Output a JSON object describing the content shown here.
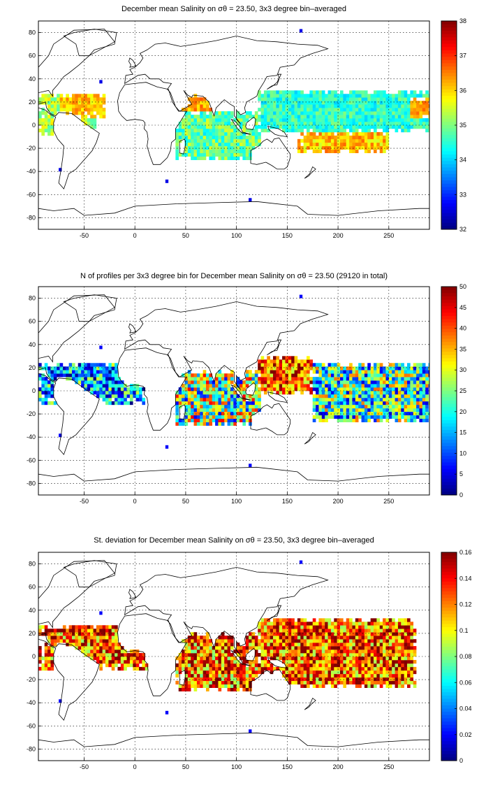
{
  "figure": {
    "grid": true,
    "x_ticks": [
      -50,
      0,
      50,
      100,
      150,
      200,
      250
    ],
    "y_ticks": [
      80,
      60,
      40,
      20,
      0,
      -20,
      -40,
      -60,
      -80
    ],
    "xlim": [
      -95,
      290
    ],
    "ylim": [
      -90,
      90
    ],
    "colormap": "jet"
  },
  "panels": [
    {
      "title": "December mean Salinity on σθ = 23.50, 3x3 degree bin–averaged",
      "colorbar": {
        "min": 32,
        "max": 38,
        "ticks": [
          "38",
          "37",
          "36",
          "35",
          "34",
          "33",
          "32"
        ]
      }
    },
    {
      "title": "N of profiles per 3x3 degree bin for December mean Salinity on σθ = 23.50 (29120 in total)",
      "colorbar": {
        "min": 0,
        "max": 50,
        "ticks": [
          "50",
          "45",
          "40",
          "35",
          "30",
          "25",
          "20",
          "15",
          "10",
          "5",
          "0"
        ]
      }
    },
    {
      "title": "St. deviation for December mean Salinity on σθ = 23.50, 3x3 degree bin–averaged",
      "colorbar": {
        "min": 0,
        "max": 0.16,
        "ticks": [
          "0.16",
          "0.14",
          "0.12",
          "0.1",
          "0.08",
          "0.06",
          "0.04",
          "0.02",
          "0"
        ]
      }
    }
  ],
  "chart_data": [
    {
      "type": "heatmap",
      "title": "December mean Salinity on σθ = 23.50, 3x3 degree bin–averaged",
      "xlim": [
        -95,
        290
      ],
      "ylim": [
        -90,
        90
      ],
      "value_range": [
        32,
        38
      ],
      "regions": [
        {
          "lon": [
            -95,
            -45
          ],
          "lat": [
            -10,
            20
          ],
          "value": 35.6
        },
        {
          "lon": [
            -75,
            -30
          ],
          "lat": [
            5,
            25
          ],
          "value": 36.0
        },
        {
          "lon": [
            45,
            75
          ],
          "lat": [
            10,
            25
          ],
          "value": 36.2
        },
        {
          "lon": [
            40,
            120
          ],
          "lat": [
            -30,
            20
          ],
          "value": 34.8
        },
        {
          "lon": [
            120,
            290
          ],
          "lat": [
            -10,
            30
          ],
          "value": 34.7
        },
        {
          "lon": [
            160,
            250
          ],
          "lat": [
            -25,
            -5
          ],
          "value": 36.0
        },
        {
          "lon": [
            270,
            290
          ],
          "lat": [
            5,
            25
          ],
          "value": 36.2
        }
      ]
    },
    {
      "type": "heatmap",
      "title": "N of profiles per 3x3 degree bin for December mean Salinity on σθ = 23.50 (29120 in total)",
      "xlim": [
        -95,
        290
      ],
      "ylim": [
        -90,
        90
      ],
      "value_range": [
        0,
        50
      ],
      "total": 29120,
      "regions": [
        {
          "lon": [
            -95,
            -45
          ],
          "lat": [
            -10,
            20
          ],
          "value": 12
        },
        {
          "lon": [
            40,
            120
          ],
          "lat": [
            -30,
            20
          ],
          "value": 25
        },
        {
          "lon": [
            120,
            175
          ],
          "lat": [
            0,
            30
          ],
          "value": 40
        },
        {
          "lon": [
            175,
            290
          ],
          "lat": [
            -25,
            20
          ],
          "value": 22
        }
      ]
    },
    {
      "type": "heatmap",
      "title": "St. deviation for December mean Salinity on σθ = 23.50, 3x3 degree bin–averaged",
      "xlim": [
        -95,
        290
      ],
      "ylim": [
        -90,
        90
      ],
      "value_range": [
        0,
        0.16
      ],
      "regions": [
        {
          "lon": [
            -95,
            10
          ],
          "lat": [
            -10,
            25
          ],
          "value": 0.14
        },
        {
          "lon": [
            40,
            120
          ],
          "lat": [
            -30,
            20
          ],
          "value": 0.13
        },
        {
          "lon": [
            120,
            270
          ],
          "lat": [
            -25,
            30
          ],
          "value": 0.13
        }
      ]
    }
  ]
}
